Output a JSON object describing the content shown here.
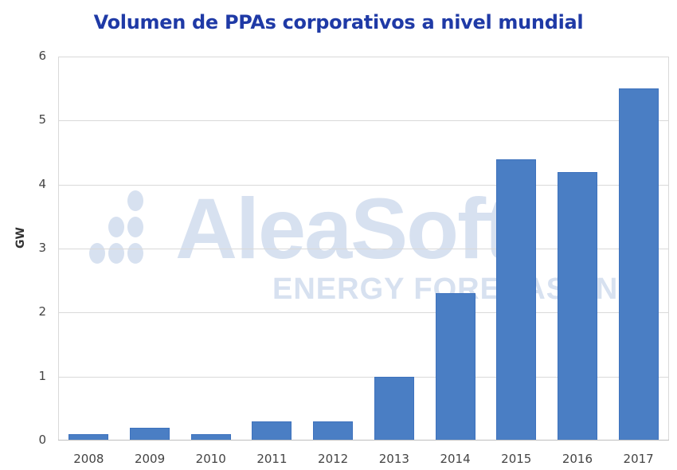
{
  "chart_data": {
    "type": "bar",
    "title": "Volumen de PPAs corporativos a nivel mundial",
    "xlabel": "",
    "ylabel": "GW",
    "categories": [
      "2008",
      "2009",
      "2010",
      "2011",
      "2012",
      "2013",
      "2014",
      "2015",
      "2016",
      "2017"
    ],
    "values": [
      0.1,
      0.2,
      0.1,
      0.3,
      0.3,
      1.0,
      2.3,
      4.4,
      4.2,
      5.5
    ],
    "ylim": [
      0,
      6
    ],
    "yticks": [
      "0",
      "1",
      "2",
      "3",
      "4",
      "5",
      "6"
    ],
    "grid": true,
    "legend": null,
    "bar_color": "#4a7ec4"
  },
  "watermark": {
    "brand": "AleaSoft",
    "tagline": "ENERGY FORECASTING"
  }
}
